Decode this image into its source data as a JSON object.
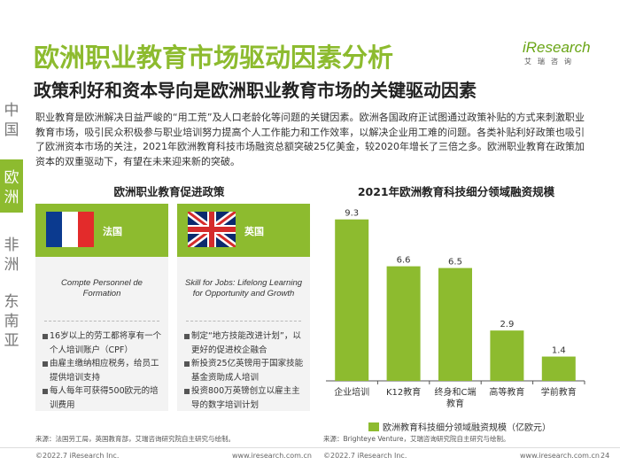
{
  "header": {
    "title": "欧洲职业教育市场驱动因素分析",
    "subtitle": "政策利好和资本导向是欧洲职业教育市场的关键驱动因素"
  },
  "logo": {
    "word": "iResearch",
    "sub": "艾瑞咨询",
    "color": "#6aa516"
  },
  "side_nav": {
    "items": [
      {
        "label": "中国",
        "chars": [
          "中",
          "国"
        ],
        "active": false
      },
      {
        "label": "欧洲",
        "chars": [
          "欧",
          "洲"
        ],
        "active": true
      },
      {
        "label": "非洲",
        "chars": [
          "非",
          "洲"
        ],
        "active": false
      },
      {
        "label": "东南亚",
        "chars": [
          "东",
          "南",
          "亚"
        ],
        "active": false
      }
    ]
  },
  "intro": "职业教育是欧洲解决日益严峻的“用工荒”及人口老龄化等问题的关键因素。欧洲各国政府正试图通过政策补贴的方式来刺激职业教育市场，吸引民众积极参与职业培训努力提高个人工作能力和工作效率，以解决企业用工难的问题。各类补贴利好政策也吸引了欧洲资本市场的关注，2021年欧洲教育科技市场融资总额突破25亿美金，较2020年增长了三倍之多。欧洲职业教育在政策加资本的双重驱动下，有望在未来迎来新的突破。",
  "policy": {
    "title": "欧洲职业教育促进政策",
    "cards": [
      {
        "country": "法国",
        "scheme": "Compte Personnel de Formation",
        "items": [
          "16岁以上的劳工都将享有一个个人培训账户（CPF）",
          "由雇主缴纳相应税务，给员工提供培训支持",
          "每人每年可获得500欧元的培训费用"
        ]
      },
      {
        "country": "英国",
        "scheme": "Skill for Jobs: Lifelong Learning for Opportunity and Growth",
        "items": [
          "制定“地方技能改进计划”，以更好的促进校企融合",
          "新投资25亿英镑用于国家技能基金资助成人培训",
          "投资800万英镑创立以雇主主导的数字培训计划"
        ]
      }
    ]
  },
  "chart_data": {
    "type": "bar",
    "title": "2021年欧洲教育科技细分领域融资规模",
    "categories": [
      "企业培训",
      "K12教育",
      "终身和C端教育",
      "高等教育",
      "学前教育"
    ],
    "series": [
      {
        "name": "欧洲教育科技细分领域融资规模（亿欧元）",
        "values": [
          9.3,
          6.6,
          6.5,
          2.9,
          1.4
        ]
      }
    ],
    "ylim": [
      0,
      10
    ],
    "grid": false,
    "legend": "bottom",
    "bar_color": "#8dbb2f"
  },
  "sources": {
    "left": "来源：法国劳工局，英国教育部，艾瑞咨询研究院自主研究与绘制。",
    "right": "来源：Brighteye Venture，艾瑞咨询研究院自主研究与绘制。"
  },
  "footer": {
    "copyright_left": "©2022.7 iResearch Inc.",
    "url_left": "www.iresearch.com.cn",
    "copyright_right": "©2022.7 iResearch Inc.",
    "url_right": "www.iresearch.com.cn",
    "page": "24"
  },
  "colors": {
    "accent": "#8dbb2f",
    "card_bg": "#f3f3f3"
  }
}
